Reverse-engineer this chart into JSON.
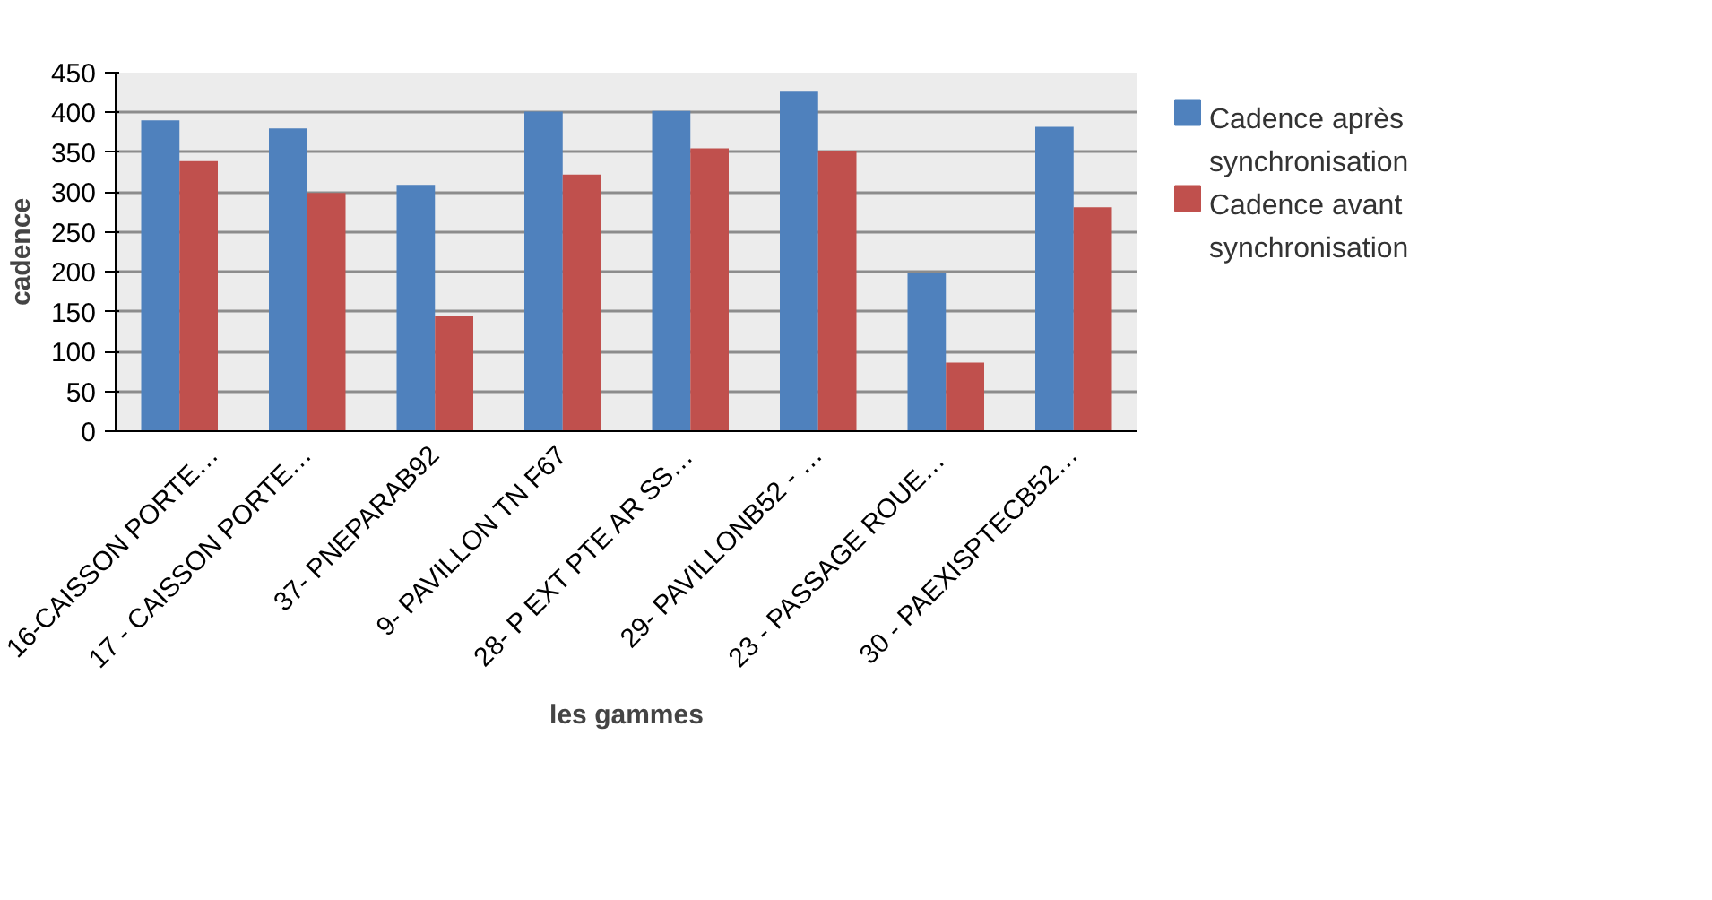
{
  "chart_data": {
    "type": "bar",
    "xlabel": "les gammes",
    "ylabel": "cadence",
    "categories": [
      "16-CAISSON PORTE…",
      "17 - CAISSON PORTE…",
      "37- PNEPARAB92",
      "9- PAVILLON TN F67",
      "28- P EXT PTE AR SS…",
      "29- PAVILLONB52 - …",
      "23  - PASSAGE ROUE…",
      "30 - PAEXISPTECB52…"
    ],
    "series": [
      {
        "name": "Cadence après synchronisation",
        "color": "#4f81bd",
        "values": [
          390,
          380,
          309,
          401,
          402,
          426,
          198,
          382
        ]
      },
      {
        "name": "Cadence avant synchronisation",
        "color": "#c0504d",
        "values": [
          339,
          299,
          145,
          322,
          355,
          352,
          86,
          281
        ]
      }
    ],
    "ylim": [
      0,
      450
    ],
    "yticks": [
      0,
      50,
      100,
      150,
      200,
      250,
      300,
      350,
      400,
      450
    ],
    "grid": "y",
    "legend": "right"
  }
}
